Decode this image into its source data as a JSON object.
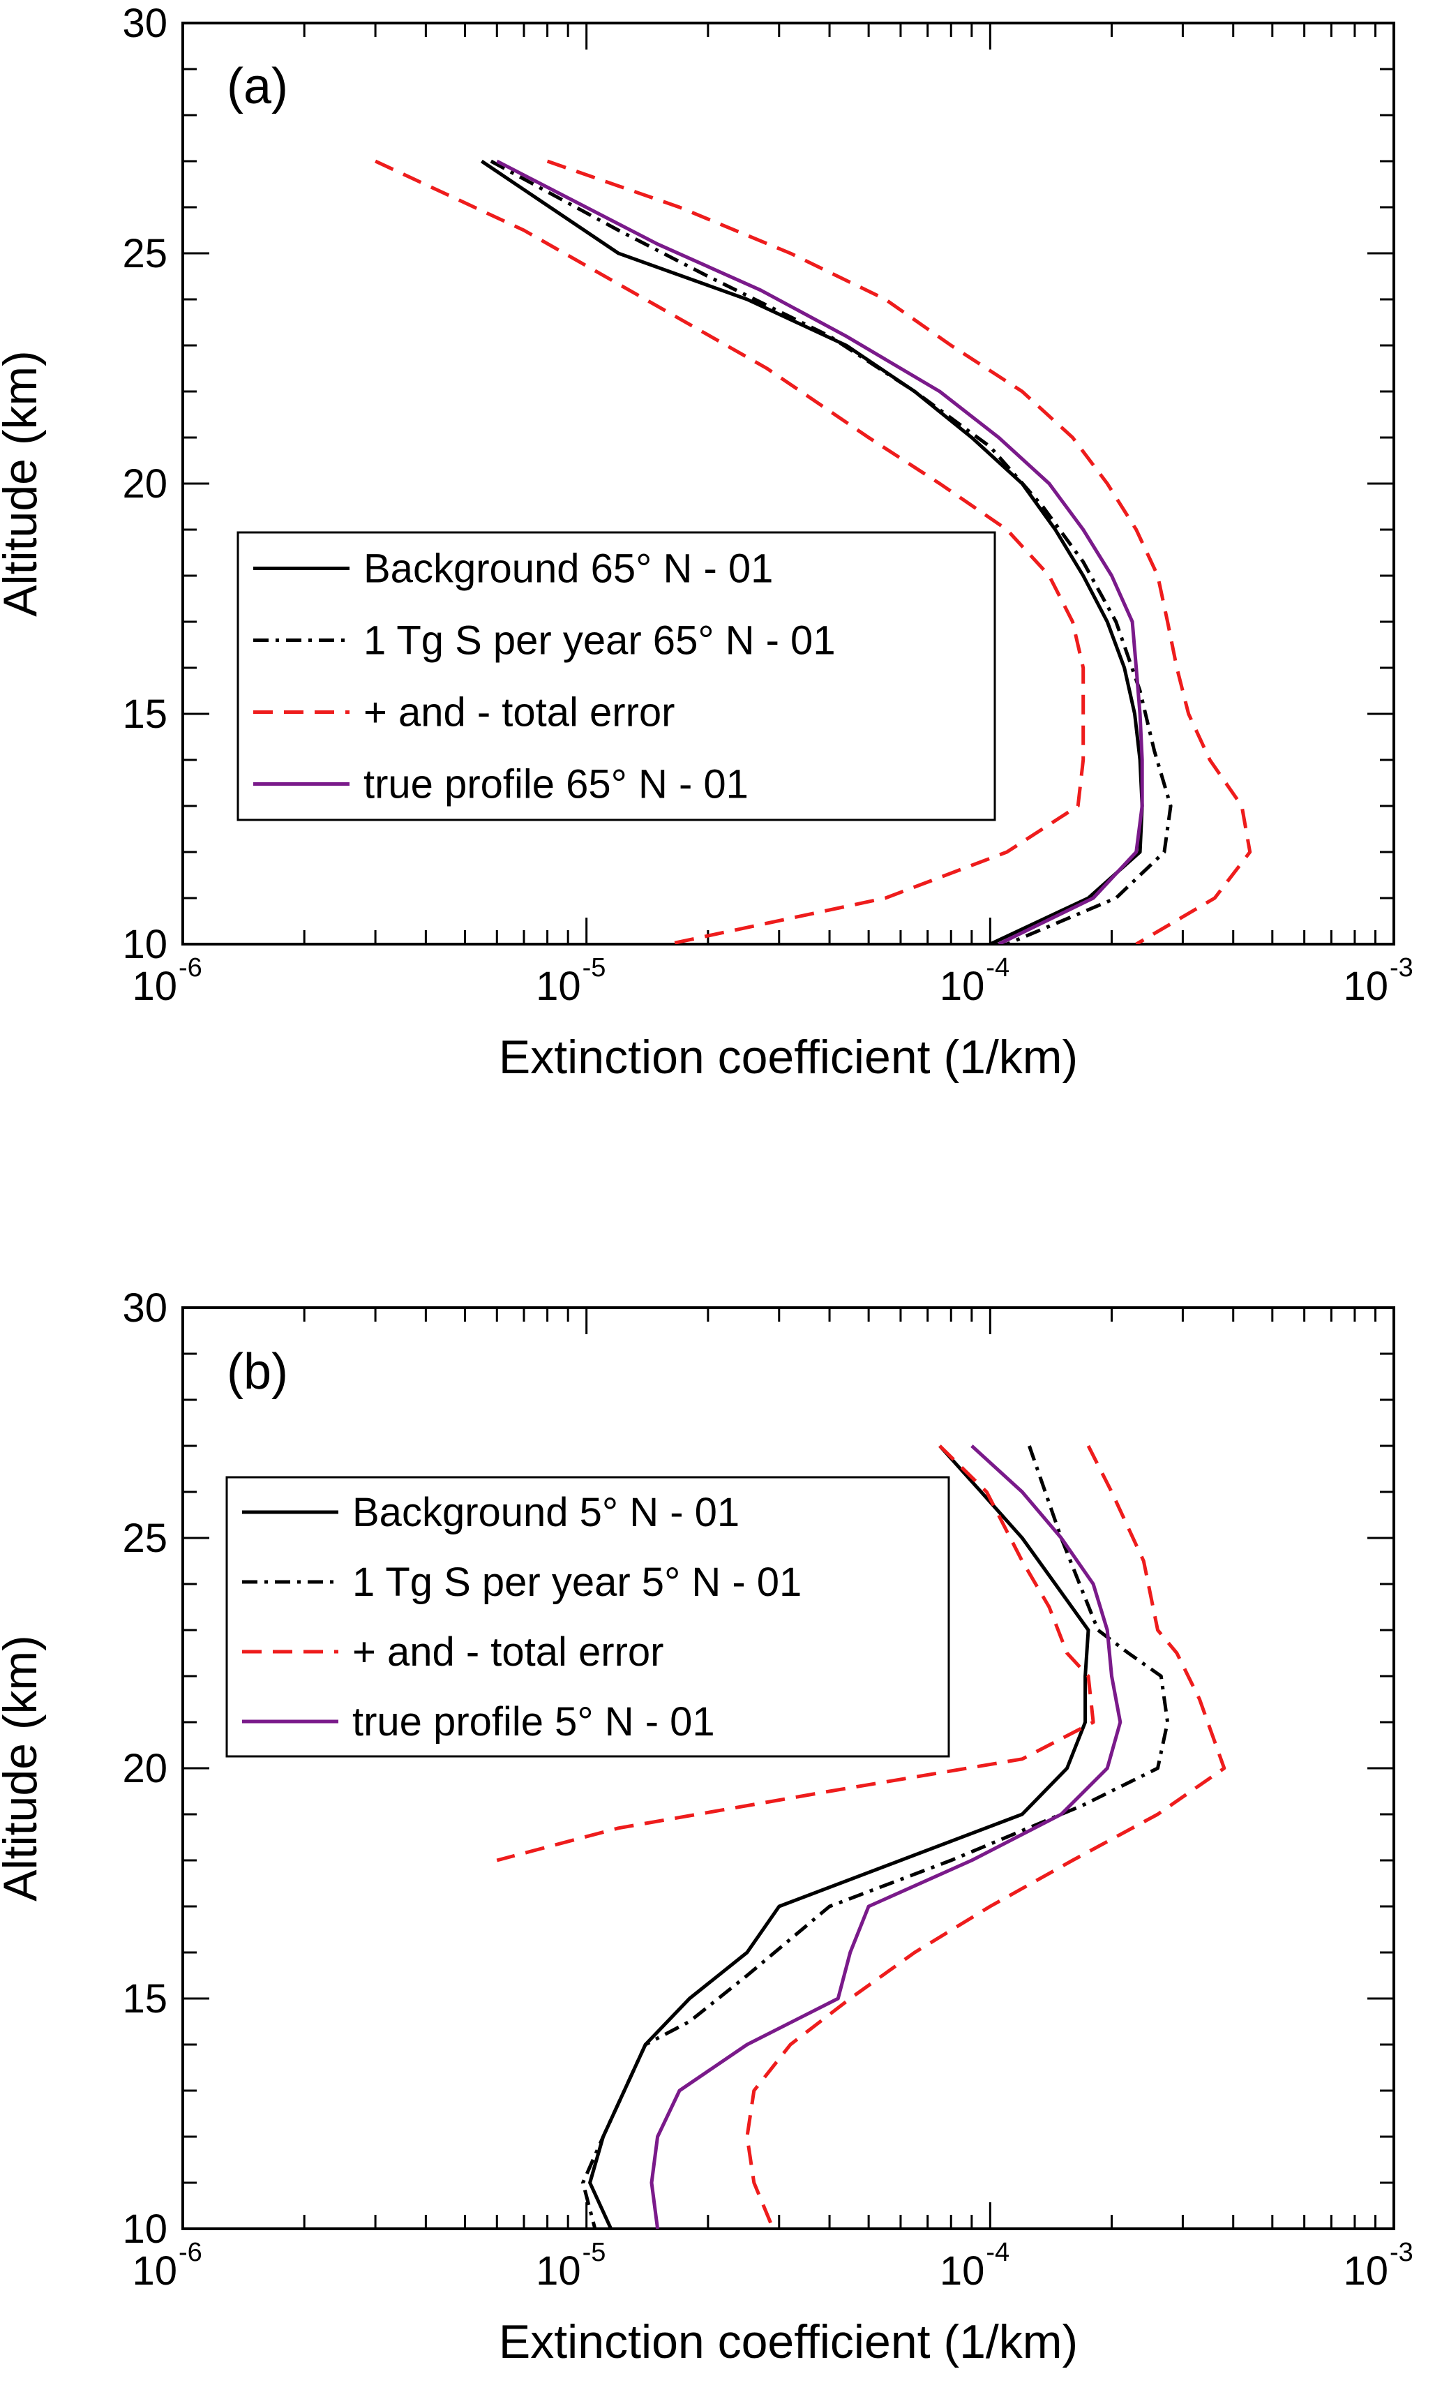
{
  "chart_data": [
    {
      "type": "line",
      "panel_label": "(a)",
      "xlabel": "Extinction coefficient (1/km)",
      "ylabel": "Altitude (km)",
      "xscale": "log",
      "xlim": [
        1e-06,
        0.001
      ],
      "ylim": [
        10,
        30
      ],
      "xticks": [
        {
          "base": "10",
          "exp": "-6",
          "value": 1e-06
        },
        {
          "base": "10",
          "exp": "-5",
          "value": 1e-05
        },
        {
          "base": "10",
          "exp": "-4",
          "value": 0.0001
        },
        {
          "base": "10",
          "exp": "-3",
          "value": 0.001
        }
      ],
      "yticks": [
        "10",
        "15",
        "20",
        "25",
        "30"
      ],
      "grid": false,
      "legend_position": "middle-left",
      "legend": [
        {
          "label": "Background 65° N - 01",
          "color": "#000000",
          "dash": "solid"
        },
        {
          "label": "1 Tg S per year 65° N - 01",
          "color": "#000000",
          "dash": "dashdot"
        },
        {
          "label": "+  and - total error",
          "color": "#ee1c1c",
          "dash": "dashed"
        },
        {
          "label": "true profile 65° N - 01",
          "color": "#7a1a8a",
          "dash": "solid"
        }
      ],
      "series": [
        {
          "name": "Background 65° N - 01",
          "color": "#000000",
          "dash": "solid",
          "points": [
            [
              5.5e-06,
              27
            ],
            [
              1.2e-05,
              25
            ],
            [
              2.5e-05,
              24
            ],
            [
              4.4e-05,
              23
            ],
            [
              6.5e-05,
              22
            ],
            [
              9e-05,
              21
            ],
            [
              0.00012,
              20
            ],
            [
              0.000145,
              19
            ],
            [
              0.00017,
              18
            ],
            [
              0.000195,
              17
            ],
            [
              0.000215,
              16
            ],
            [
              0.000228,
              15
            ],
            [
              0.000235,
              14
            ],
            [
              0.000238,
              13
            ],
            [
              0.000235,
              12
            ],
            [
              0.000175,
              11
            ],
            [
              0.0001,
              10
            ]
          ]
        },
        {
          "name": "1 Tg S per year 65° N - 01",
          "color": "#000000",
          "dash": "dashdot",
          "points": [
            [
              5.8e-06,
              27
            ],
            [
              1.2e-05,
              25.5
            ],
            [
              2e-05,
              24.5
            ],
            [
              4e-05,
              23.2
            ],
            [
              6.5e-05,
              22
            ],
            [
              0.0001,
              20.8
            ],
            [
              0.000135,
              19.5
            ],
            [
              0.00017,
              18.3
            ],
            [
              0.000205,
              17
            ],
            [
              0.000235,
              15.5
            ],
            [
              0.000255,
              14.2
            ],
            [
              0.00028,
              13
            ],
            [
              0.00027,
              12
            ],
            [
              0.000205,
              11
            ],
            [
              0.00011,
              10
            ]
          ]
        },
        {
          "name": "true profile 65° N - 01",
          "color": "#7a1a8a",
          "dash": "solid",
          "points": [
            [
              6e-06,
              27
            ],
            [
              1.5e-05,
              25.2
            ],
            [
              2.7e-05,
              24.2
            ],
            [
              4.4e-05,
              23.2
            ],
            [
              7.5e-05,
              22
            ],
            [
              0.000105,
              21
            ],
            [
              0.00014,
              20
            ],
            [
              0.00017,
              19
            ],
            [
              0.0002,
              18
            ],
            [
              0.000225,
              17
            ],
            [
              0.00023,
              16
            ],
            [
              0.000235,
              15
            ],
            [
              0.000238,
              14
            ],
            [
              0.000238,
              13
            ],
            [
              0.00023,
              12
            ],
            [
              0.00018,
              11
            ],
            [
              0.000105,
              10
            ]
          ]
        },
        {
          "name": "total error (lower)",
          "color": "#ee1c1c",
          "dash": "dashed",
          "points": [
            [
              3e-06,
              27
            ],
            [
              7e-06,
              25.5
            ],
            [
              1.4e-05,
              24
            ],
            [
              2.8e-05,
              22.5
            ],
            [
              5e-05,
              21
            ],
            [
              7.5e-05,
              20
            ],
            [
              0.00011,
              19
            ],
            [
              0.00014,
              18
            ],
            [
              0.00016,
              17
            ],
            [
              0.00017,
              16
            ],
            [
              0.00017,
              15
            ],
            [
              0.00017,
              14
            ],
            [
              0.000165,
              13
            ],
            [
              0.00011,
              12
            ],
            [
              5.5e-05,
              11
            ],
            [
              1.6e-05,
              10
            ]
          ]
        },
        {
          "name": "total error (upper)",
          "color": "#ee1c1c",
          "dash": "dashed",
          "points": [
            [
              8e-06,
              27
            ],
            [
              1.7e-05,
              26
            ],
            [
              3.2e-05,
              25
            ],
            [
              5.5e-05,
              24
            ],
            [
              8e-05,
              23
            ],
            [
              0.00012,
              22
            ],
            [
              0.00016,
              21
            ],
            [
              0.000195,
              20
            ],
            [
              0.00023,
              19
            ],
            [
              0.00026,
              18
            ],
            [
              0.000275,
              17
            ],
            [
              0.00029,
              16
            ],
            [
              0.00031,
              15
            ],
            [
              0.00035,
              14
            ],
            [
              0.00042,
              13
            ],
            [
              0.00044,
              12
            ],
            [
              0.00036,
              11
            ],
            [
              0.00023,
              10
            ]
          ]
        }
      ]
    },
    {
      "type": "line",
      "panel_label": "(b)",
      "xlabel": "Extinction coefficient (1/km)",
      "ylabel": "Altitude (km)",
      "xscale": "log",
      "xlim": [
        1e-06,
        0.001
      ],
      "ylim": [
        10,
        30
      ],
      "xticks": [
        {
          "base": "10",
          "exp": "-6",
          "value": 1e-06
        },
        {
          "base": "10",
          "exp": "-5",
          "value": 1e-05
        },
        {
          "base": "10",
          "exp": "-4",
          "value": 0.0001
        },
        {
          "base": "10",
          "exp": "-3",
          "value": 0.001
        }
      ],
      "yticks": [
        "10",
        "15",
        "20",
        "25",
        "30"
      ],
      "grid": false,
      "legend_position": "upper-left",
      "legend": [
        {
          "label": "Background 5° N - 01",
          "color": "#000000",
          "dash": "solid"
        },
        {
          "label": "1 Tg S per year 5° N - 01",
          "color": "#000000",
          "dash": "dashdot"
        },
        {
          "label": "+  and - total error",
          "color": "#ee1c1c",
          "dash": "dashed"
        },
        {
          "label": "true profile 5° N - 01",
          "color": "#7a1a8a",
          "dash": "solid"
        }
      ],
      "series": [
        {
          "name": "Background 5° N - 01",
          "color": "#000000",
          "dash": "solid",
          "points": [
            [
              7.5e-05,
              27
            ],
            [
              9.5e-05,
              26
            ],
            [
              0.00012,
              25
            ],
            [
              0.000145,
              24
            ],
            [
              0.000175,
              23
            ],
            [
              0.000172,
              22
            ],
            [
              0.000172,
              21
            ],
            [
              0.000155,
              20
            ],
            [
              0.00012,
              19
            ],
            [
              6e-05,
              18
            ],
            [
              3e-05,
              17
            ],
            [
              2.5e-05,
              16
            ],
            [
              1.8e-05,
              15
            ],
            [
              1.4e-05,
              14
            ],
            [
              1.1e-05,
              12
            ],
            [
              1.02e-05,
              11
            ],
            [
              1.15e-05,
              10
            ]
          ]
        },
        {
          "name": "1 Tg S per year 5° N - 01",
          "color": "#000000",
          "dash": "dashdot",
          "points": [
            [
              0.000125,
              27
            ],
            [
              0.00015,
              25
            ],
            [
              0.000185,
              23
            ],
            [
              0.00022,
              22.5
            ],
            [
              0.000265,
              22
            ],
            [
              0.000275,
              21
            ],
            [
              0.00026,
              20
            ],
            [
              0.00017,
              19.2
            ],
            [
              8e-05,
              18
            ],
            [
              4e-05,
              17
            ],
            [
              2.5e-05,
              15.5
            ],
            [
              1.8e-05,
              14.5
            ],
            [
              1.4e-05,
              14
            ],
            [
              1.1e-05,
              12
            ],
            [
              9.8e-06,
              11
            ],
            [
              1.05e-05,
              10
            ]
          ]
        },
        {
          "name": "true profile 5° N - 01",
          "color": "#7a1a8a",
          "dash": "solid",
          "points": [
            [
              9e-05,
              27
            ],
            [
              0.00012,
              26
            ],
            [
              0.00015,
              25
            ],
            [
              0.00018,
              24
            ],
            [
              0.000195,
              23
            ],
            [
              0.0002,
              22
            ],
            [
              0.00021,
              21
            ],
            [
              0.000195,
              20
            ],
            [
              0.00015,
              19
            ],
            [
              9e-05,
              18
            ],
            [
              5e-05,
              17
            ],
            [
              4.5e-05,
              16
            ],
            [
              4.2e-05,
              15
            ],
            [
              2.5e-05,
              14
            ],
            [
              1.7e-05,
              13
            ],
            [
              1.5e-05,
              12
            ],
            [
              1.45e-05,
              11
            ],
            [
              1.5e-05,
              10
            ]
          ]
        },
        {
          "name": "total error (lower)",
          "color": "#ee1c1c",
          "dash": "dashed",
          "points": [
            [
              7.5e-05,
              27
            ],
            [
              9.8e-05,
              26
            ],
            [
              0.00012,
              24.5
            ],
            [
              0.00014,
              23.5
            ],
            [
              0.000155,
              22.5
            ],
            [
              0.000175,
              22
            ],
            [
              0.00018,
              21
            ],
            [
              0.00012,
              20.2
            ],
            [
              4e-05,
              19.5
            ],
            [
              1.2e-05,
              18.7
            ],
            [
              6e-06,
              18
            ]
          ]
        },
        {
          "name": "total error (upper)",
          "color": "#ee1c1c",
          "dash": "dashed",
          "points": [
            [
              0.000175,
              27
            ],
            [
              0.0002,
              26
            ],
            [
              0.00024,
              24.5
            ],
            [
              0.00026,
              23
            ],
            [
              0.00029,
              22.5
            ],
            [
              0.00033,
              21.5
            ],
            [
              0.00038,
              20
            ],
            [
              0.00026,
              19
            ],
            [
              0.00016,
              18
            ],
            [
              0.0001,
              17
            ],
            [
              6.5e-05,
              16
            ],
            [
              4.5e-05,
              15
            ],
            [
              3.2e-05,
              14
            ],
            [
              2.6e-05,
              13
            ],
            [
              2.5e-05,
              12
            ],
            [
              2.6e-05,
              11
            ],
            [
              2.9e-05,
              10
            ]
          ]
        }
      ]
    }
  ]
}
